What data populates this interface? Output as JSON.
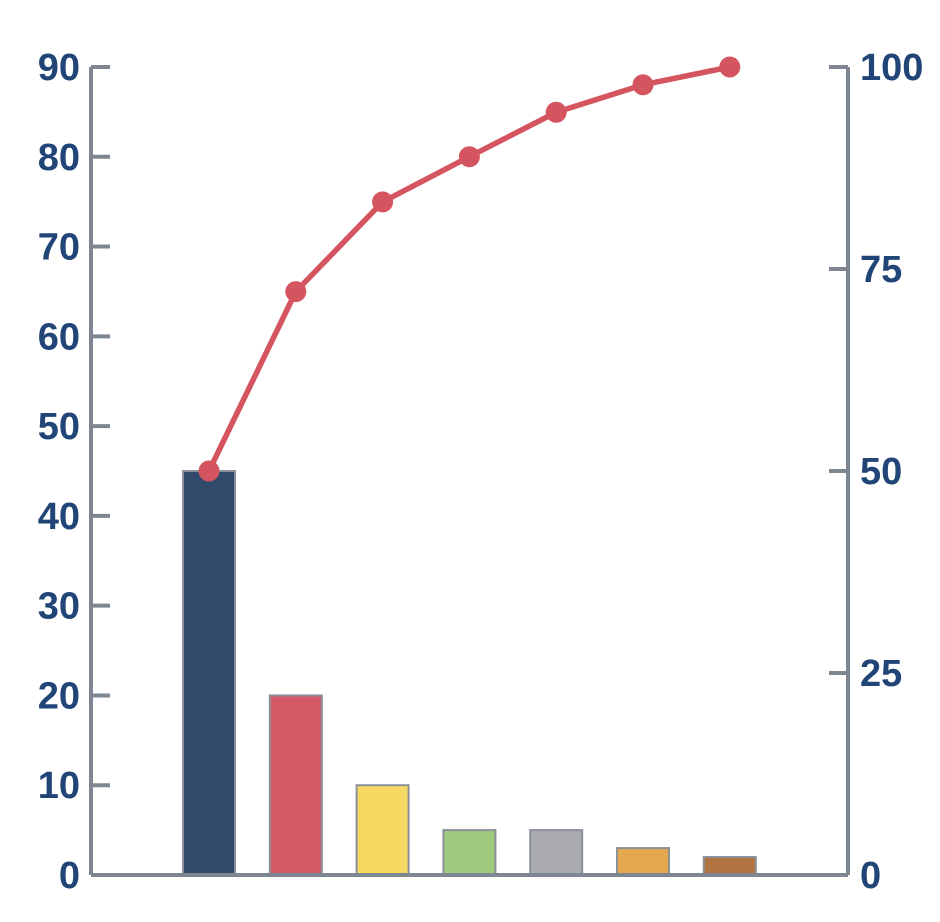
{
  "figure": {
    "background_color": "#FFFFFF"
  },
  "chart_data": {
    "type": "bar",
    "subtype": "pareto",
    "title": "",
    "grid": false,
    "legend": false,
    "x_axis": {
      "category_labels_visible": false
    },
    "left_axis": {
      "min": 0,
      "max": 90,
      "tick_values": [
        0,
        10,
        20,
        30,
        40,
        50,
        60,
        70,
        80,
        90
      ],
      "tick_labels": [
        "0",
        "10",
        "20",
        "30",
        "40",
        "50",
        "60",
        "70",
        "80",
        "90"
      ]
    },
    "right_axis": {
      "min": 0,
      "max": 100,
      "tick_values": [
        0,
        25,
        50,
        75,
        100
      ],
      "tick_labels": [
        "0",
        "25",
        "50",
        "75",
        "100"
      ]
    },
    "series": [
      {
        "name": "frequency-bars",
        "type": "bar",
        "axis": "left",
        "values": [
          45,
          20,
          10,
          5,
          5,
          3,
          2
        ],
        "bar_colors": [
          "#31496B",
          "#D25965",
          "#F5D963",
          "#9ECB7E",
          "#A9ABAE",
          "#E6A84E",
          "#B1733F"
        ],
        "bar_border_color": "#8B9199"
      },
      {
        "name": "cumulative-percent-line",
        "type": "line",
        "axis": "right",
        "values": [
          50,
          72.2,
          83.3,
          88.9,
          94.4,
          97.8,
          100
        ],
        "color": "#D4545F",
        "marker": "circle"
      }
    ],
    "style_colors": {
      "axis": "#7E8791",
      "tick_label": "#224577"
    }
  }
}
